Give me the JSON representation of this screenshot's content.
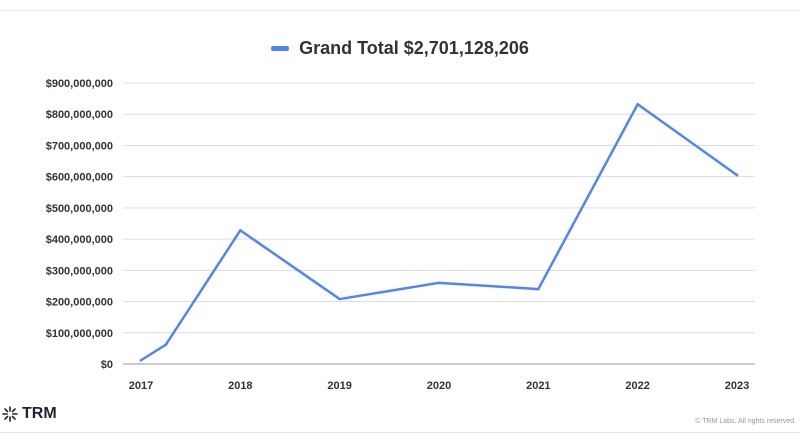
{
  "chart_data": {
    "type": "line",
    "title": "",
    "xlabel": "",
    "ylabel": "",
    "legend": {
      "label": "Grand Total $2,701,128,206",
      "color": "#4f86f7",
      "placement": "top-center"
    },
    "x_ticks": [
      "2017",
      "2018",
      "2019",
      "2020",
      "2021",
      "2022",
      "2023"
    ],
    "y_ticks": [
      "$0",
      "$100,000,000",
      "$200,000,000",
      "$300,000,000",
      "$400,000,000",
      "$500,000,000",
      "$600,000,000",
      "$700,000,000",
      "$800,000,000",
      "$900,000,000"
    ],
    "ylim": [
      0,
      900000000
    ],
    "xlim": [
      2017,
      2023
    ],
    "grid": true,
    "series": [
      {
        "name": "Grand Total $2,701,128,206",
        "color": "#4f86f7",
        "x": [
          2017.0,
          2017.25,
          2018.0,
          2019.0,
          2020.0,
          2021.0,
          2022.0,
          2023.0
        ],
        "y": [
          12000000,
          62000000,
          428000000,
          208000000,
          260000000,
          240000000,
          832000000,
          605000000
        ]
      }
    ]
  },
  "branding": {
    "name": "TRM",
    "copyright": "© TRM Labs. All rights reserved."
  }
}
